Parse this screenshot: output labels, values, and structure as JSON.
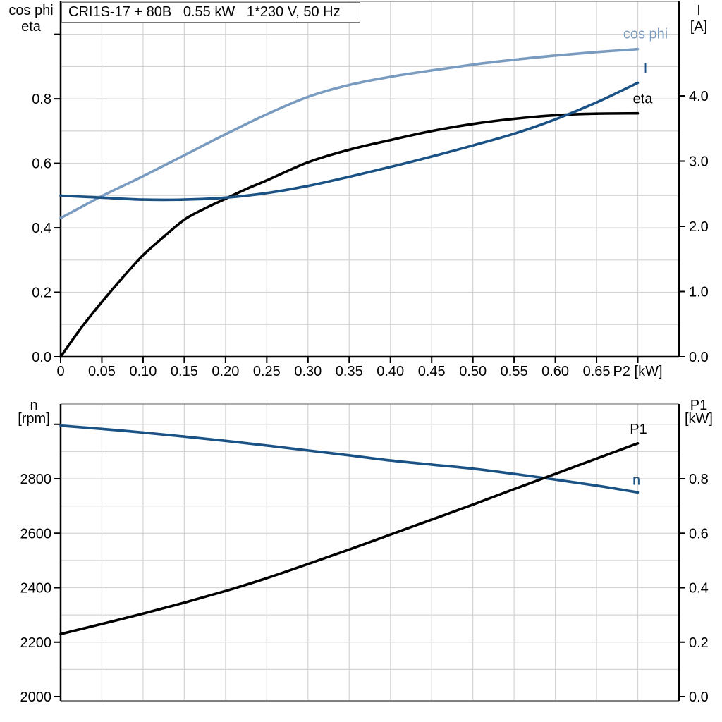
{
  "colors": {
    "background": "#ffffff",
    "grid": "#d4d4d4",
    "border": "#7f7f7f",
    "axis": "#000000",
    "light_blue": "#7a9bc0",
    "dark_blue": "#1a5286",
    "black": "#000000"
  },
  "chart_data": [
    {
      "id": "motor-electrical-panel",
      "type": "line",
      "title_box": "CRI1S-17 + 80B   0.55 kW   1*230 V, 50 Hz",
      "x_axis": {
        "label": "P2 [kW]",
        "lim": [
          0,
          0.75
        ],
        "tick_values": [
          0,
          0.05,
          0.1,
          0.15,
          0.2,
          0.25,
          0.3,
          0.35,
          0.4,
          0.45,
          0.5,
          0.55,
          0.6,
          0.65,
          0.7
        ],
        "tick_labels": [
          "0",
          "0.05",
          "0.10",
          "0.15",
          "0.20",
          "0.25",
          "0.30",
          "0.35",
          "0.40",
          "0.45",
          "0.50",
          "0.55",
          "0.60",
          "0.65",
          "P2 [kW]"
        ],
        "grid_values": [
          0.05,
          0.1,
          0.15,
          0.2,
          0.25,
          0.3,
          0.35,
          0.4,
          0.45,
          0.5,
          0.55,
          0.6,
          0.65,
          0.7
        ]
      },
      "left_axis": {
        "header": [
          "cos phi",
          "eta"
        ],
        "lim": [
          0,
          1.102
        ],
        "tick_values": [
          0,
          0.2,
          0.4,
          0.6,
          0.8
        ],
        "tick_labels": [
          "0.0",
          "0.2",
          "0.4",
          "0.6",
          "0.8"
        ],
        "extra_ticks": [
          1.0
        ],
        "grid_values": [
          0.1,
          0.2,
          0.3,
          0.4,
          0.5,
          0.6,
          0.7,
          0.8,
          0.9,
          1.0
        ]
      },
      "right_axis": {
        "header": [
          "I",
          "[A]"
        ],
        "lim": [
          0,
          5.449
        ],
        "tick_values": [
          0,
          1,
          2,
          3,
          4
        ],
        "tick_labels": [
          "0.0",
          "1.0",
          "2.0",
          "3.0",
          "4.0"
        ],
        "extra_ticks": []
      },
      "series": [
        {
          "name": "cos phi",
          "axis": "left",
          "color": "#7a9bc0",
          "x": [
            0,
            0.05,
            0.1,
            0.15,
            0.2,
            0.25,
            0.3,
            0.35,
            0.4,
            0.45,
            0.5,
            0.55,
            0.6,
            0.65,
            0.7
          ],
          "values": [
            0.43,
            0.498,
            0.56,
            0.625,
            0.69,
            0.752,
            0.806,
            0.843,
            0.868,
            0.888,
            0.906,
            0.921,
            0.934,
            0.945,
            0.954
          ],
          "label_offset": [
            11,
            -15
          ]
        },
        {
          "name": "eta",
          "axis": "left",
          "color": "#000000",
          "x": [
            0,
            0.025,
            0.05,
            0.075,
            0.1,
            0.125,
            0.15,
            0.175,
            0.2,
            0.225,
            0.25,
            0.3,
            0.35,
            0.4,
            0.45,
            0.5,
            0.55,
            0.6,
            0.65,
            0.7
          ],
          "values": [
            0,
            0.09,
            0.17,
            0.245,
            0.315,
            0.372,
            0.425,
            0.46,
            0.49,
            0.52,
            0.547,
            0.603,
            0.642,
            0.672,
            0.7,
            0.722,
            0.738,
            0.749,
            0.754,
            0.755
          ],
          "label_offset": [
            7,
            -14
          ]
        },
        {
          "name": "I",
          "axis": "right",
          "color": "#1a5286",
          "x": [
            0,
            0.05,
            0.1,
            0.15,
            0.2,
            0.25,
            0.3,
            0.35,
            0.4,
            0.45,
            0.5,
            0.55,
            0.6,
            0.65,
            0.7
          ],
          "values": [
            2.47,
            2.44,
            2.41,
            2.41,
            2.44,
            2.51,
            2.62,
            2.76,
            2.91,
            3.07,
            3.24,
            3.42,
            3.64,
            3.9,
            4.2
          ],
          "label_offset": [
            11,
            -14
          ]
        }
      ]
    },
    {
      "id": "motor-mechanical-panel",
      "type": "line",
      "title_box": null,
      "x_axis": {
        "label": "",
        "lim": [
          0,
          0.75
        ],
        "tick_values": [],
        "tick_labels": [],
        "grid_values": [
          0.05,
          0.1,
          0.15,
          0.2,
          0.25,
          0.3,
          0.35,
          0.4,
          0.45,
          0.5,
          0.55,
          0.6,
          0.65,
          0.7
        ]
      },
      "left_axis": {
        "header": [
          "n",
          "[rpm]"
        ],
        "lim": [
          1984.5,
          3074.5
        ],
        "tick_values": [
          2000,
          2200,
          2400,
          2600,
          2800
        ],
        "tick_labels": [
          "2000",
          "2200",
          "2400",
          "2600",
          "2800"
        ],
        "extra_ticks": [
          3000
        ],
        "grid_values": [
          2100,
          2200,
          2300,
          2400,
          2500,
          2600,
          2700,
          2800,
          2900,
          3000
        ]
      },
      "right_axis": {
        "header": [
          "P1",
          "[kW]"
        ],
        "lim": [
          -0.0155,
          1.0745
        ],
        "tick_values": [
          0,
          0.2,
          0.4,
          0.6,
          0.8
        ],
        "tick_labels": [
          "0.0",
          "0.2",
          "0.4",
          "0.6",
          "0.8"
        ],
        "extra_ticks": []
      },
      "series": [
        {
          "name": "n",
          "axis": "left",
          "color": "#1a5286",
          "x": [
            0,
            0.05,
            0.1,
            0.15,
            0.2,
            0.25,
            0.3,
            0.35,
            0.4,
            0.45,
            0.5,
            0.55,
            0.6,
            0.65,
            0.7
          ],
          "values": [
            2995,
            2983,
            2970,
            2955,
            2939,
            2922,
            2904,
            2886,
            2867,
            2852,
            2837,
            2818,
            2797,
            2775,
            2750
          ],
          "label_offset": [
            -2,
            -11
          ]
        },
        {
          "name": "P1",
          "axis": "right",
          "color": "#000000",
          "x": [
            0,
            0.05,
            0.1,
            0.15,
            0.2,
            0.25,
            0.3,
            0.35,
            0.4,
            0.45,
            0.5,
            0.55,
            0.6,
            0.65,
            0.7
          ],
          "values": [
            0.23,
            0.267,
            0.305,
            0.345,
            0.388,
            0.435,
            0.487,
            0.54,
            0.595,
            0.65,
            0.705,
            0.762,
            0.818,
            0.874,
            0.93
          ],
          "label_offset": [
            1,
            -14
          ]
        }
      ]
    }
  ]
}
